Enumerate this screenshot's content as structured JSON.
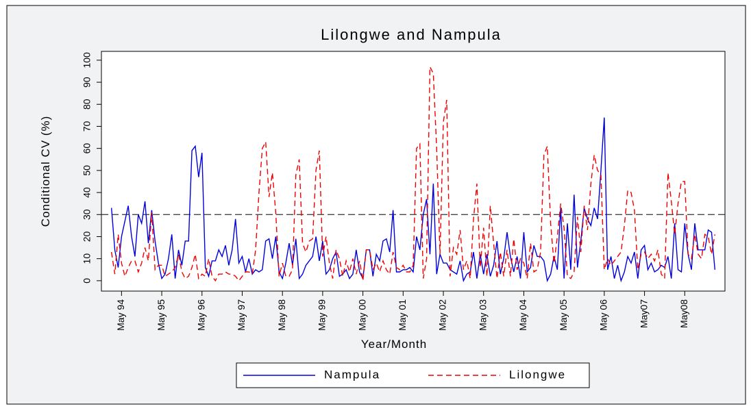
{
  "chart_data": {
    "type": "line",
    "title": "Lilongwe and Nampula",
    "x_label": "Year/Month",
    "y_label": "Conditional CV (%)",
    "x": [
      "1994-02",
      "1994-03",
      "1994-04",
      "1994-05",
      "1994-06",
      "1994-07",
      "1994-08",
      "1994-09",
      "1994-10",
      "1994-11",
      "1994-12",
      "1995-01",
      "1995-02",
      "1995-03",
      "1995-04",
      "1995-05",
      "1995-06",
      "1995-07",
      "1995-08",
      "1995-09",
      "1995-10",
      "1995-11",
      "1995-12",
      "1996-01",
      "1996-02",
      "1996-03",
      "1996-04",
      "1996-05",
      "1996-06",
      "1996-07",
      "1996-08",
      "1996-09",
      "1996-10",
      "1996-11",
      "1996-12",
      "1997-01",
      "1997-02",
      "1997-03",
      "1997-04",
      "1997-05",
      "1997-06",
      "1997-07",
      "1997-08",
      "1997-09",
      "1997-10",
      "1997-11",
      "1997-12",
      "1998-01",
      "1998-02",
      "1998-03",
      "1998-04",
      "1998-05",
      "1998-06",
      "1998-07",
      "1998-08",
      "1998-09",
      "1998-10",
      "1998-11",
      "1998-12",
      "1999-01",
      "1999-02",
      "1999-03",
      "1999-04",
      "1999-05",
      "1999-06",
      "1999-07",
      "1999-08",
      "1999-09",
      "1999-10",
      "1999-11",
      "1999-12",
      "2000-01",
      "2000-02",
      "2000-03",
      "2000-04",
      "2000-05",
      "2000-06",
      "2000-07",
      "2000-08",
      "2000-09",
      "2000-10",
      "2000-11",
      "2000-12",
      "2001-01",
      "2001-02",
      "2001-03",
      "2001-04",
      "2001-05",
      "2001-06",
      "2001-07",
      "2001-08",
      "2001-09",
      "2001-10",
      "2001-11",
      "2001-12",
      "2002-01",
      "2002-02",
      "2002-03",
      "2002-04",
      "2002-05",
      "2002-06",
      "2002-07",
      "2002-08",
      "2002-09",
      "2002-10",
      "2002-11",
      "2002-12",
      "2003-01",
      "2003-02",
      "2003-03",
      "2003-04",
      "2003-05",
      "2003-06",
      "2003-07",
      "2003-08",
      "2003-09",
      "2003-10",
      "2003-11",
      "2003-12",
      "2004-01",
      "2004-02",
      "2004-03",
      "2004-04",
      "2004-05",
      "2004-06",
      "2004-07",
      "2004-08",
      "2004-09",
      "2004-10",
      "2004-11",
      "2004-12",
      "2005-01",
      "2005-02",
      "2005-03",
      "2005-04",
      "2005-05",
      "2005-06",
      "2005-07",
      "2005-08",
      "2005-09",
      "2005-10",
      "2005-11",
      "2005-12",
      "2006-01",
      "2006-02",
      "2006-03",
      "2006-04",
      "2006-05",
      "2006-06",
      "2006-07",
      "2006-08",
      "2006-09",
      "2006-10",
      "2006-11",
      "2006-12",
      "2007-01",
      "2007-02",
      "2007-03",
      "2007-04",
      "2007-05",
      "2007-06",
      "2007-07",
      "2007-08",
      "2007-09",
      "2007-10",
      "2007-11",
      "2007-12",
      "2008-01",
      "2008-02",
      "2008-03",
      "2008-04",
      "2008-05",
      "2008-06",
      "2008-07",
      "2008-08",
      "2008-09",
      "2008-10",
      "2008-11",
      "2008-12",
      "2009-01",
      "2009-02"
    ],
    "series": [
      {
        "name": "Nampula",
        "color": "#0000dd",
        "dash": "solid",
        "values": [
          33,
          14,
          6,
          20,
          27,
          34,
          20,
          11,
          30,
          26,
          36,
          17,
          32,
          18,
          8,
          1,
          3,
          10,
          21,
          1,
          14,
          7,
          18,
          18,
          59,
          61,
          47,
          58,
          6,
          2,
          9,
          9,
          14,
          11,
          16,
          7,
          14,
          28,
          8,
          11,
          4,
          10,
          3,
          5,
          4,
          5,
          18,
          19,
          10,
          20,
          4,
          1,
          8,
          17,
          7,
          19,
          1,
          3,
          7,
          9,
          11,
          20,
          9,
          18,
          3,
          5,
          10,
          13,
          2,
          3,
          5,
          1,
          3,
          14,
          4,
          1,
          14,
          14,
          2,
          12,
          9,
          18,
          19,
          13,
          32,
          4,
          4,
          5,
          5,
          6,
          4,
          20,
          14,
          30,
          37,
          12,
          44,
          3,
          12,
          8,
          8,
          5,
          4,
          3,
          9,
          0,
          3,
          4,
          13,
          1,
          12,
          3,
          12,
          2,
          7,
          18,
          3,
          10,
          22,
          11,
          4,
          11,
          1,
          22,
          4,
          6,
          16,
          11,
          11,
          9,
          0,
          3,
          11,
          5,
          33,
          1,
          26,
          5,
          39,
          6,
          18,
          33,
          28,
          25,
          33,
          28,
          50,
          74,
          5,
          11,
          1,
          7,
          0,
          4,
          11,
          8,
          13,
          1,
          14,
          16,
          5,
          8,
          4,
          5,
          7,
          6,
          11,
          1,
          26,
          5,
          4,
          26,
          12,
          5,
          26,
          14,
          14,
          14,
          23,
          22,
          5
        ]
      },
      {
        "name": "Lilongwe",
        "color": "#ee0000",
        "dash": "dashed",
        "values": [
          13,
          3,
          21,
          8,
          2,
          6,
          9,
          9,
          4,
          8,
          15,
          9,
          31,
          5,
          7,
          7,
          2,
          3,
          4,
          6,
          12,
          4,
          1,
          2,
          6,
          12,
          1,
          3,
          2,
          10,
          2,
          0,
          3,
          3,
          4,
          3,
          3,
          2,
          0,
          2,
          4,
          4,
          3,
          14,
          40,
          60,
          63,
          38,
          49,
          31,
          2,
          8,
          2,
          2,
          5,
          48,
          55,
          17,
          13,
          18,
          19,
          50,
          59,
          11,
          20,
          8,
          1,
          14,
          10,
          2,
          9,
          4,
          10,
          3,
          9,
          0,
          14,
          14,
          5,
          8,
          4,
          9,
          5,
          3,
          13,
          6,
          5,
          7,
          4,
          4,
          7,
          60,
          62,
          1,
          10,
          97,
          94,
          60,
          12,
          72,
          82,
          2,
          15,
          12,
          23,
          5,
          9,
          1,
          28,
          44,
          6,
          24,
          2,
          34,
          17,
          1,
          13,
          2,
          14,
          2,
          19,
          5,
          10,
          8,
          1,
          17,
          4,
          5,
          13,
          57,
          61,
          26,
          8,
          20,
          35,
          24,
          2,
          1,
          4,
          29,
          13,
          34,
          23,
          44,
          57,
          50,
          48,
          5,
          10,
          7,
          9,
          11,
          13,
          25,
          41,
          40,
          32,
          5,
          12,
          13,
          10,
          12,
          9,
          14,
          3,
          1,
          49,
          36,
          21,
          35,
          45,
          45,
          12,
          10,
          21,
          12,
          10,
          21,
          20,
          12,
          21
        ]
      }
    ],
    "xlim": [
      "1993-11",
      "2009-05"
    ],
    "xticks": [
      {
        "value": "1994-05",
        "label": "May 94"
      },
      {
        "value": "1995-05",
        "label": "May 95"
      },
      {
        "value": "1996-05",
        "label": "May 96"
      },
      {
        "value": "1997-05",
        "label": "May 97"
      },
      {
        "value": "1998-05",
        "label": "May 98"
      },
      {
        "value": "1999-05",
        "label": "May 99"
      },
      {
        "value": "2000-05",
        "label": "May 00"
      },
      {
        "value": "2001-05",
        "label": "May 01"
      },
      {
        "value": "2002-05",
        "label": "May 02"
      },
      {
        "value": "2003-05",
        "label": "May 03"
      },
      {
        "value": "2004-05",
        "label": "May 04"
      },
      {
        "value": "2005-05",
        "label": "May 05"
      },
      {
        "value": "2006-05",
        "label": "May 06"
      },
      {
        "value": "2007-05",
        "label": "May07"
      },
      {
        "value": "2008-05",
        "label": "May08"
      }
    ],
    "ylim": [
      -4.7,
      104
    ],
    "yticks": [
      0,
      10,
      20,
      30,
      40,
      50,
      60,
      70,
      80,
      90,
      100
    ],
    "reference_line": 30,
    "legend": "bottom",
    "grid": false
  }
}
